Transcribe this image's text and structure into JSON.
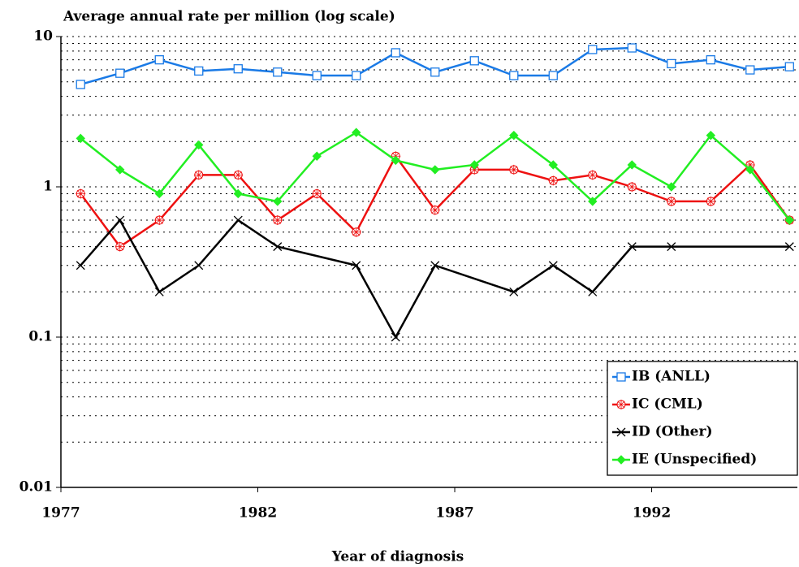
{
  "chart_data": {
    "type": "line",
    "title": "Average annual rate per million (log scale)",
    "x_label": "Year of diagnosis",
    "log_y": true,
    "grid": true,
    "legend": "lower right",
    "xlim": [
      1977,
      1995.7
    ],
    "xticks": [
      1977,
      1982,
      1987,
      1992
    ],
    "ylim": [
      0.01,
      10
    ],
    "yticks": [
      0.01,
      0.1,
      1,
      10
    ],
    "minor_yticks": [
      0.02,
      0.03,
      0.04,
      0.05,
      0.06,
      0.07,
      0.08,
      0.09,
      0.2,
      0.3,
      0.4,
      0.5,
      0.6,
      0.7,
      0.8,
      0.9,
      2,
      3,
      4,
      5,
      6,
      7,
      8,
      9
    ],
    "series": [
      {
        "name": "IB (ANLL)",
        "color": "#1a7ae6",
        "marker": "square",
        "x": [
          1977.5,
          1978.5,
          1979.5,
          1980.5,
          1981.5,
          1982.5,
          1983.5,
          1984.5,
          1985.5,
          1986.5,
          1987.5,
          1988.5,
          1989.5,
          1990.5,
          1991.5,
          1992.5,
          1993.5,
          1994.5,
          1995.5
        ],
        "values": [
          4.8,
          5.7,
          7.0,
          5.9,
          6.1,
          5.8,
          5.5,
          5.5,
          7.8,
          5.8,
          6.9,
          5.5,
          5.5,
          8.2,
          8.4,
          6.6,
          7.0,
          6.0,
          6.3
        ]
      },
      {
        "name": "IC (CML)",
        "color": "#ee1111",
        "marker": "star",
        "x": [
          1977.5,
          1978.5,
          1979.5,
          1980.5,
          1981.5,
          1982.5,
          1983.5,
          1984.5,
          1985.5,
          1986.5,
          1987.5,
          1988.5,
          1989.5,
          1990.5,
          1991.5,
          1992.5,
          1993.5,
          1994.5,
          1995.5
        ],
        "values": [
          0.9,
          0.4,
          0.6,
          1.2,
          1.2,
          0.6,
          0.9,
          0.5,
          1.6,
          0.7,
          1.3,
          1.3,
          1.1,
          1.2,
          1.0,
          0.8,
          0.8,
          1.4,
          0.6
        ]
      },
      {
        "name": "ID (Other)",
        "color": "#000000",
        "marker": "cross",
        "x": [
          1977.5,
          1978.5,
          1979.5,
          1980.5,
          1981.5,
          1982.5,
          1984.5,
          1985.5,
          1986.5,
          1988.5,
          1989.5,
          1990.5,
          1991.5,
          1992.5,
          1995.5
        ],
        "values": [
          0.3,
          0.6,
          0.2,
          0.3,
          0.6,
          0.4,
          0.3,
          0.1,
          0.3,
          0.2,
          0.3,
          0.2,
          0.4,
          0.4,
          0.4
        ]
      },
      {
        "name": "IE (Unspecified)",
        "color": "#22ee22",
        "marker": "diamond",
        "x": [
          1977.5,
          1978.5,
          1979.5,
          1980.5,
          1981.5,
          1982.5,
          1983.5,
          1984.5,
          1985.5,
          1986.5,
          1987.5,
          1988.5,
          1989.5,
          1990.5,
          1991.5,
          1992.5,
          1993.5,
          1994.5,
          1995.5
        ],
        "values": [
          2.1,
          1.3,
          0.9,
          1.9,
          0.9,
          0.8,
          1.6,
          2.3,
          1.5,
          1.3,
          1.4,
          2.2,
          1.4,
          0.8,
          1.4,
          1.0,
          2.2,
          1.3,
          0.6
        ]
      }
    ]
  }
}
